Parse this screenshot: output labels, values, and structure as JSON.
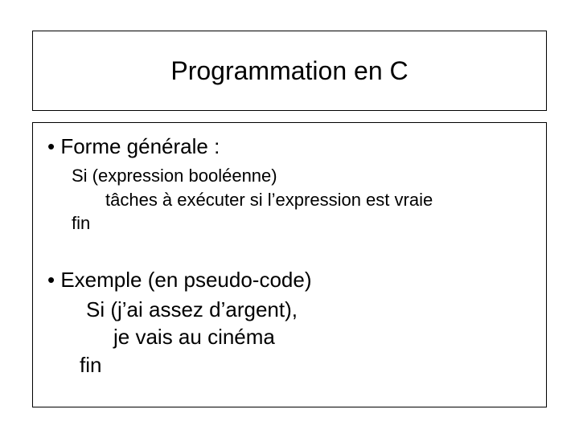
{
  "slide": {
    "title": "Programmation en C",
    "section1": {
      "heading": "• Forme générale :",
      "line1": "Si (expression booléenne)",
      "line2": "tâches à exécuter si l’expression est vraie",
      "line3": "fin"
    },
    "section2": {
      "heading": "• Exemple (en pseudo-code)",
      "line1": "Si (j’ai assez d’argent),",
      "line2": "je vais au cinéma",
      "line3": "fin"
    }
  },
  "style": {
    "background_color": "#ffffff",
    "text_color": "#000000",
    "border_color": "#000000",
    "title_fontsize": 32,
    "heading_fontsize": 26,
    "body_fontsize_section1": 22,
    "body_fontsize_section2": 26,
    "font_family": "Arial"
  }
}
